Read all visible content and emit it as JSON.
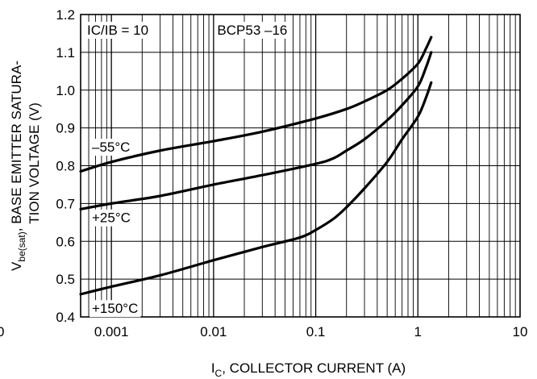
{
  "chart_data": {
    "type": "line",
    "x_scale": "log",
    "xlim": [
      0.0005,
      10
    ],
    "ylim": [
      0.4,
      1.2
    ],
    "grid": true,
    "x_ticks": [
      {
        "value": 0.001,
        "label": "0.001"
      },
      {
        "value": 0.01,
        "label": "0.01"
      },
      {
        "value": 0.1,
        "label": "0.1"
      },
      {
        "value": 1,
        "label": "1"
      },
      {
        "value": 10,
        "label": "10"
      }
    ],
    "y_ticks": [
      {
        "value": 0.4,
        "label": "0.4"
      },
      {
        "value": 0.5,
        "label": "0.5"
      },
      {
        "value": 0.6,
        "label": "0.6"
      },
      {
        "value": 0.7,
        "label": "0.7"
      },
      {
        "value": 0.8,
        "label": "0.8"
      },
      {
        "value": 0.9,
        "label": "0.9"
      },
      {
        "value": 1.0,
        "label": "1.0"
      },
      {
        "value": 1.1,
        "label": "1.1"
      },
      {
        "value": 1.2,
        "label": "1.2"
      }
    ],
    "origin_label": "0",
    "xlabel": {
      "main": "I",
      "sub": "C",
      "rest": ", COLLECTOR CURRENT (A)"
    },
    "ylabel": {
      "line1_main": "V",
      "line1_sub": "be(sat)",
      "line1_rest": ", BASE EMITTER SATURA-",
      "line2": "TION VOLTAGE (V)"
    },
    "annotations": {
      "condition": "IC/IB = 10",
      "part": "BCP53 –16"
    },
    "series": [
      {
        "name": "–55°C",
        "x": [
          0.0005,
          0.001,
          0.003,
          0.01,
          0.03,
          0.1,
          0.2,
          0.3,
          0.5,
          0.7,
          1.0,
          1.2,
          1.35
        ],
        "y": [
          0.785,
          0.81,
          0.84,
          0.865,
          0.89,
          0.925,
          0.95,
          0.97,
          1.0,
          1.03,
          1.07,
          1.11,
          1.14
        ]
      },
      {
        "name": "+25°C",
        "x": [
          0.0005,
          0.001,
          0.003,
          0.01,
          0.03,
          0.1,
          0.15,
          0.2,
          0.3,
          0.5,
          0.7,
          1.0,
          1.2,
          1.35
        ],
        "y": [
          0.685,
          0.7,
          0.72,
          0.75,
          0.775,
          0.805,
          0.82,
          0.84,
          0.87,
          0.92,
          0.96,
          1.01,
          1.06,
          1.1
        ]
      },
      {
        "name": "+150°C",
        "x": [
          0.0005,
          0.001,
          0.003,
          0.01,
          0.03,
          0.07,
          0.1,
          0.15,
          0.2,
          0.3,
          0.5,
          0.7,
          1.0,
          1.2,
          1.35
        ],
        "y": [
          0.46,
          0.48,
          0.51,
          0.55,
          0.585,
          0.61,
          0.63,
          0.66,
          0.69,
          0.74,
          0.81,
          0.87,
          0.93,
          0.98,
          1.02
        ]
      }
    ],
    "curve_labels": [
      "–55°C",
      "+25°C",
      "+150°C"
    ]
  }
}
